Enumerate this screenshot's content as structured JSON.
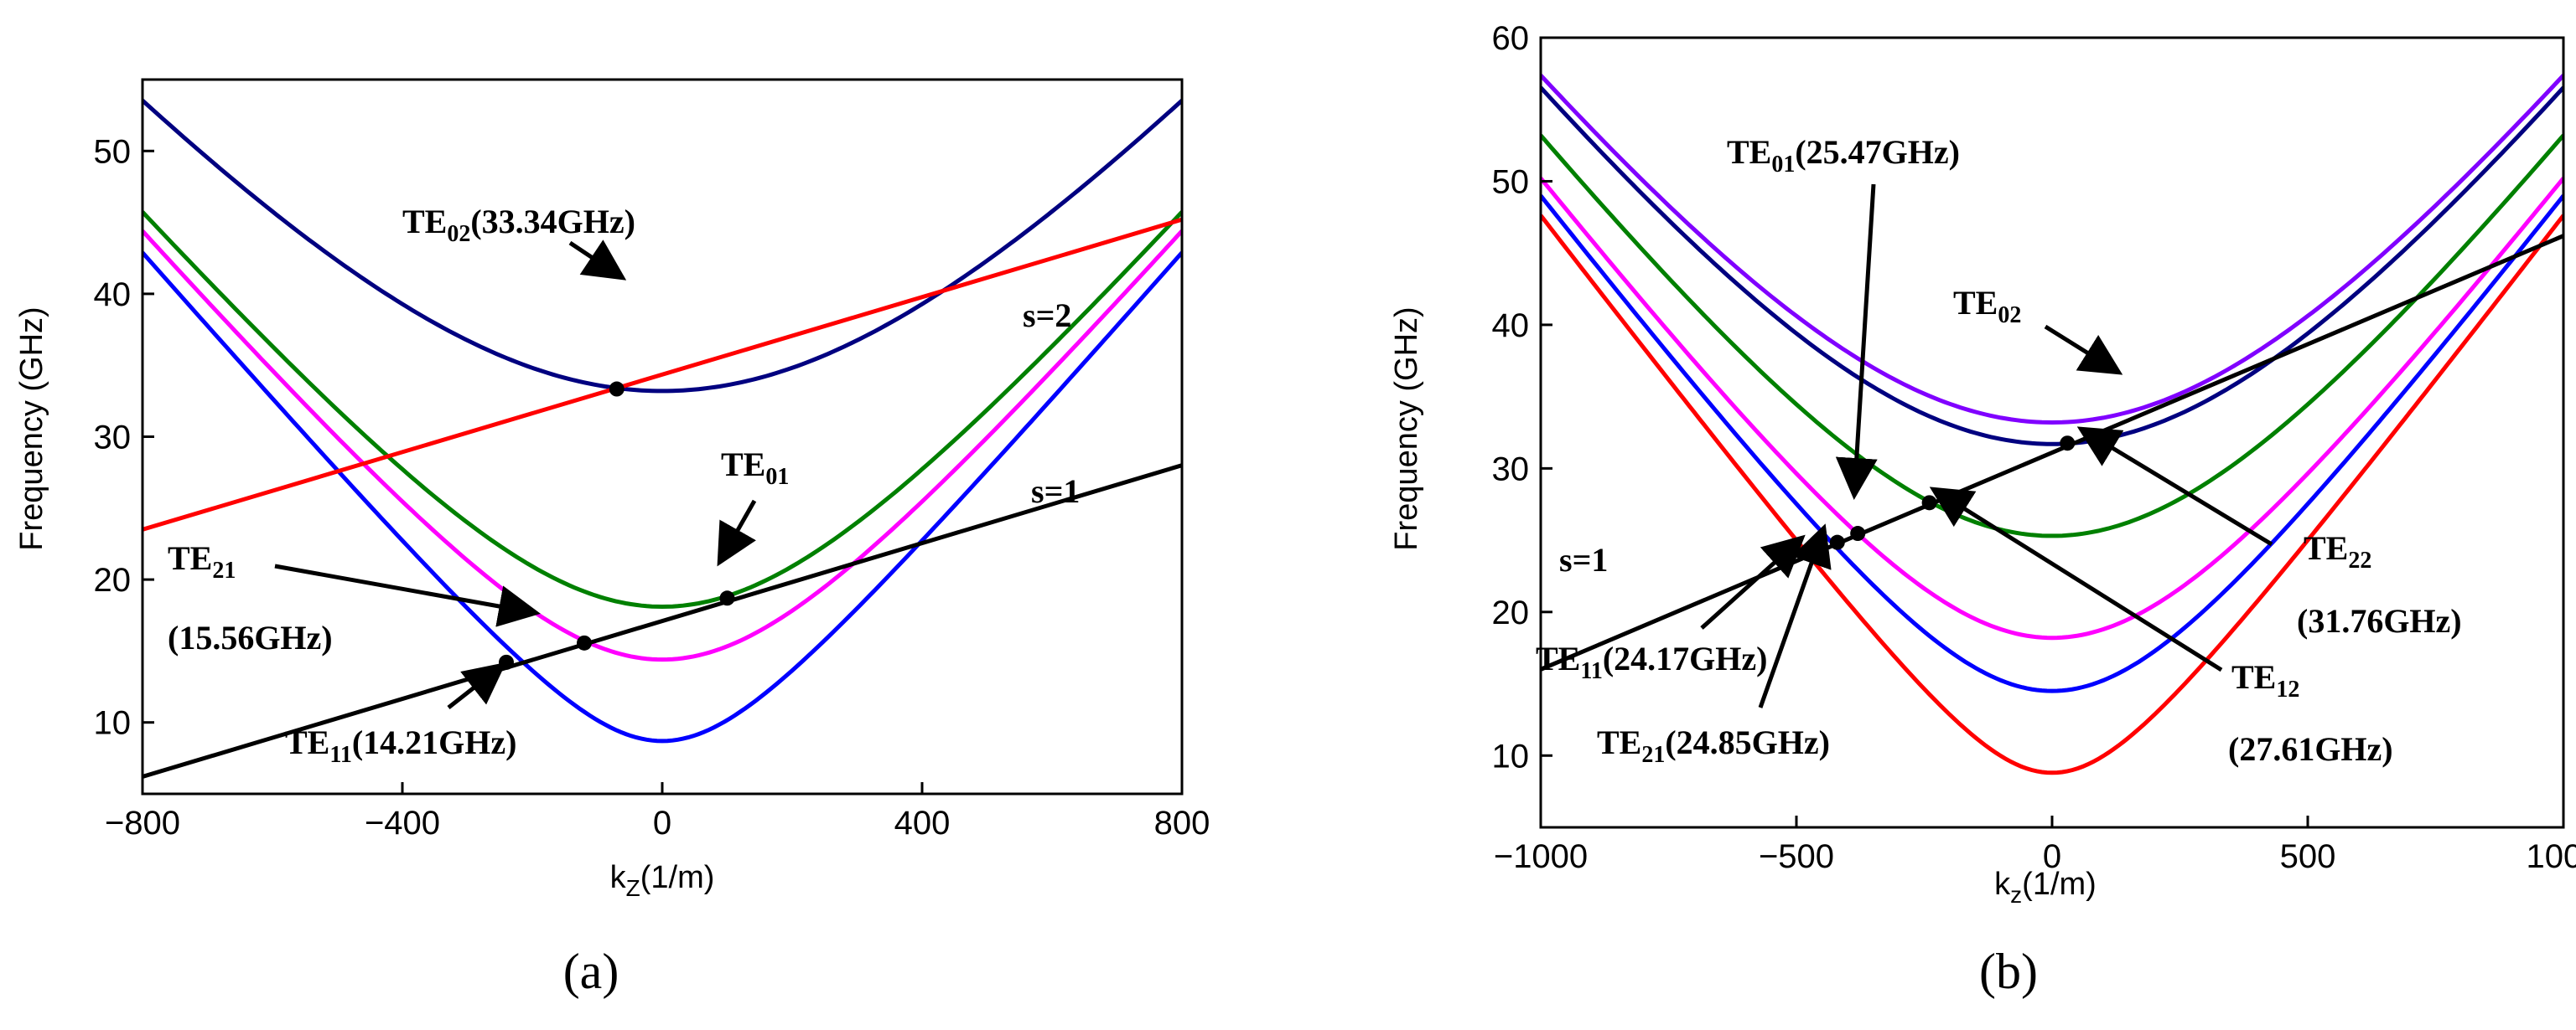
{
  "chart_data": [
    {
      "panel": "(a)",
      "type": "line",
      "xlabel": "k",
      "xlabel_sub": "Z",
      "xlabel_unit": "(1/m)",
      "ylabel": "Frequency (GHz)",
      "xlim": [
        -800,
        800
      ],
      "ylim": [
        5,
        55
      ],
      "xticks": [
        -800,
        -400,
        0,
        400,
        800
      ],
      "xtick_labels": [
        "−800",
        "−400",
        "0",
        "400",
        "800"
      ],
      "yticks": [
        10,
        20,
        30,
        40,
        50
      ],
      "ytick_labels": [
        "10",
        "20",
        "30",
        "40",
        "50"
      ],
      "grid": false,
      "modes": [
        {
          "color": "#0000ff",
          "fc": 8.7
        },
        {
          "color": "#ff00ff",
          "fc": 14.4
        },
        {
          "color": "#008000",
          "fc": 18.1
        },
        {
          "color": "#000080",
          "fc": 33.2
        }
      ],
      "beam_lines": [
        {
          "name": "s=1",
          "color": "#000000",
          "y_at_xmin": 6.2,
          "y_at_xmax": 28.0
        },
        {
          "name": "s=2",
          "color": "#ff0000",
          "y_at_xmin": 23.5,
          "y_at_xmax": 45.2
        }
      ],
      "points": [
        {
          "x": -70,
          "y": 33.34
        },
        {
          "x": 100,
          "y": 18.7
        },
        {
          "x": -120,
          "y": 15.56
        },
        {
          "x": -240,
          "y": 14.21
        }
      ],
      "annotations": [
        {
          "main": "TE",
          "sub": "02",
          "tail": "(33.34GHz)"
        },
        {
          "main": "TE",
          "sub": "01",
          "tail": ""
        },
        {
          "main": "TE",
          "sub": "21",
          "tail": ""
        },
        {
          "main": "(15.56GHz)",
          "sub": "",
          "tail": ""
        },
        {
          "main": "TE",
          "sub": "11",
          "tail": "(14.21GHz)"
        },
        {
          "main": "s=1",
          "sub": "",
          "tail": ""
        },
        {
          "main": "s=2",
          "sub": "",
          "tail": ""
        }
      ]
    },
    {
      "panel": "(b)",
      "type": "line",
      "xlabel": "k",
      "xlabel_sub": "z",
      "xlabel_unit": "(1/m)",
      "ylabel": "Frequency (GHz)",
      "xlim": [
        -1000,
        1000
      ],
      "ylim": [
        5,
        60
      ],
      "xticks": [
        -1000,
        -500,
        0,
        500,
        1000
      ],
      "xtick_labels": [
        "−1000",
        "−500",
        "0",
        "500",
        "1000"
      ],
      "yticks": [
        10,
        20,
        30,
        40,
        50,
        60
      ],
      "ytick_labels": [
        "10",
        "20",
        "30",
        "40",
        "50",
        "60"
      ],
      "grid": false,
      "modes": [
        {
          "color": "#ff0000",
          "fc": 8.8
        },
        {
          "color": "#0000ff",
          "fc": 14.5
        },
        {
          "color": "#ff00ff",
          "fc": 18.2
        },
        {
          "color": "#008000",
          "fc": 25.3
        },
        {
          "color": "#000080",
          "fc": 31.7
        },
        {
          "color": "#8000ff",
          "fc": 33.2
        }
      ],
      "beam_lines": [
        {
          "name": "s=1",
          "color": "#000000",
          "y_at_xmin": 16.0,
          "y_at_xmax": 46.2
        }
      ],
      "points": [
        {
          "x": -380,
          "y": 25.47
        },
        {
          "x": -470,
          "y": 24.17
        },
        {
          "x": -420,
          "y": 24.85
        },
        {
          "x": -240,
          "y": 27.61
        },
        {
          "x": 30,
          "y": 31.76
        }
      ],
      "annotations": [
        {
          "main": "TE",
          "sub": "01",
          "tail": "(25.47GHz)"
        },
        {
          "main": "TE",
          "sub": "02",
          "tail": ""
        },
        {
          "main": "TE",
          "sub": "22",
          "tail": ""
        },
        {
          "main": "(31.76GHz)",
          "sub": "",
          "tail": ""
        },
        {
          "main": "TE",
          "sub": "12",
          "tail": ""
        },
        {
          "main": "(27.61GHz)",
          "sub": "",
          "tail": ""
        },
        {
          "main": "TE",
          "sub": "11",
          "tail": "(24.17GHz)"
        },
        {
          "main": "TE",
          "sub": "21",
          "tail": "(24.85GHz)"
        },
        {
          "main": "s=1",
          "sub": "",
          "tail": ""
        }
      ]
    }
  ]
}
